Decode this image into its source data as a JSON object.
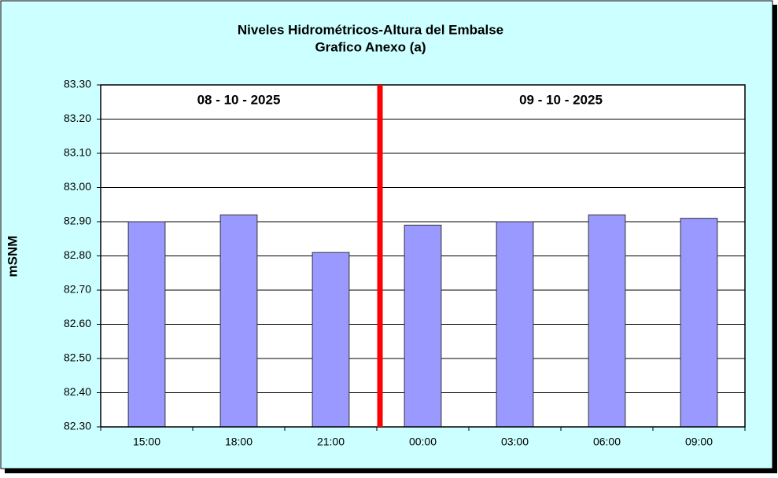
{
  "chart_data": {
    "type": "bar",
    "title": "Niveles Hidrométricos-Altura del Embalse",
    "subtitle": "Grafico Anexo (a)",
    "y_label": "mSNM",
    "annotations": [
      "08 - 10 - 2025",
      "09 - 10 - 2025"
    ],
    "categories": [
      "15:00",
      "18:00",
      "21:00",
      "00:00",
      "03:00",
      "06:00",
      "09:00"
    ],
    "values": [
      82.9,
      82.92,
      82.81,
      82.89,
      82.9,
      82.92,
      82.91
    ],
    "color": "#9999ff",
    "ylim": [
      82.3,
      83.3
    ],
    "yticks": [
      {
        "value": 82.3,
        "label": "82.30"
      },
      {
        "value": 82.4,
        "label": "82.40"
      },
      {
        "value": 82.5,
        "label": "82.50"
      },
      {
        "value": 82.6,
        "label": "82.60"
      },
      {
        "value": 82.7,
        "label": "82.70"
      },
      {
        "value": 82.8,
        "label": "82.80"
      },
      {
        "value": 82.9,
        "label": "82.90"
      },
      {
        "value": 83.0,
        "label": "83.00"
      },
      {
        "value": 83.1,
        "label": "83.10"
      },
      {
        "value": 83.2,
        "label": "83.20"
      },
      {
        "value": 83.3,
        "label": "83.30"
      }
    ],
    "grid": true
  }
}
